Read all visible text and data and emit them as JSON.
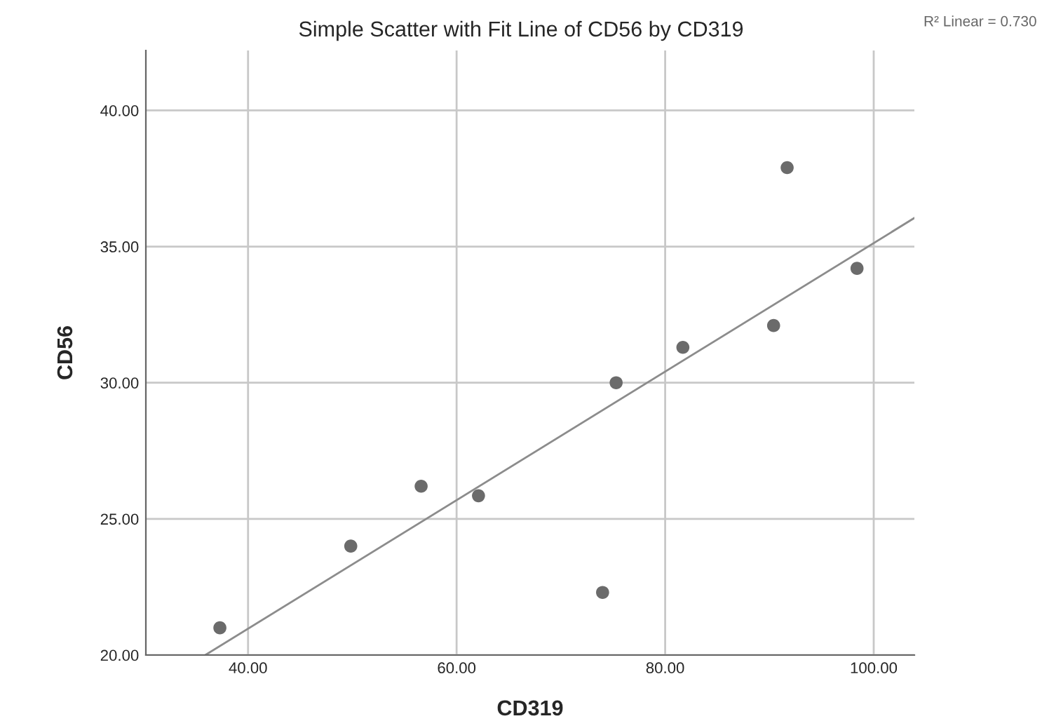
{
  "chart_data": {
    "type": "scatter",
    "title": "Simple Scatter with Fit Line of CD56 by CD319",
    "xlabel": "CD319",
    "ylabel": "CD56",
    "xlim": [
      30.2,
      103.9
    ],
    "ylim": [
      20,
      42.2
    ],
    "xticks": [
      {
        "value": 40,
        "label": "40.00"
      },
      {
        "value": 60,
        "label": "60.00"
      },
      {
        "value": 80,
        "label": "80.00"
      },
      {
        "value": 100,
        "label": "100.00"
      }
    ],
    "yticks": [
      {
        "value": 20,
        "label": "20.00"
      },
      {
        "value": 25,
        "label": "25.00"
      },
      {
        "value": 30,
        "label": "30.00"
      },
      {
        "value": 35,
        "label": "35.00"
      },
      {
        "value": 40,
        "label": "40.00"
      }
    ],
    "grid": true,
    "marker": "circle",
    "annotations": [
      "R² Linear = 0.730"
    ],
    "series": [
      {
        "color": "#6b6b6b",
        "x": [
          37.3,
          49.85,
          56.6,
          62.1,
          74.0,
          75.3,
          81.7,
          90.4,
          91.7,
          98.4
        ],
        "values": [
          21.0,
          24.0,
          26.2,
          25.85,
          22.3,
          30.0,
          31.3,
          32.1,
          37.9,
          34.2
        ]
      },
      {
        "type": "line",
        "color": "#8c8c8c",
        "x": [
          35.9,
          103.9
        ],
        "values": [
          20.0,
          36.05
        ],
        "marker": "none",
        "line_style": "solid"
      }
    ]
  }
}
